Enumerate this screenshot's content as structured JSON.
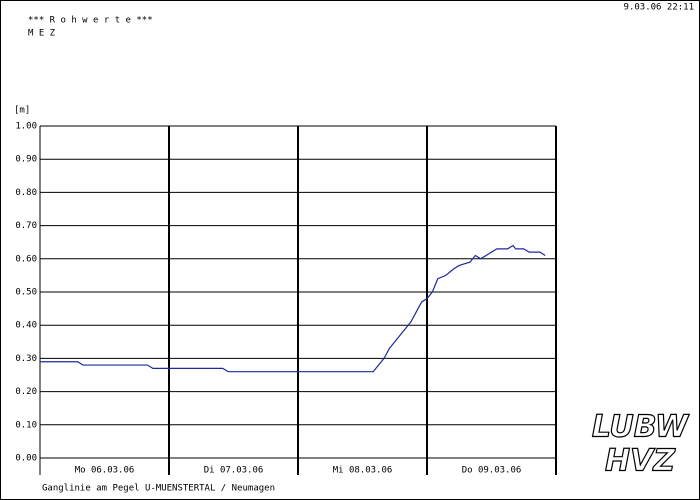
{
  "chart_data": {
    "type": "line",
    "title": "*** R o h w e r t e ***",
    "subtitle": "M E Z",
    "timestamp": "9.03.06 22:11",
    "y_label": "[m]",
    "footer": "Ganglinie am Pegel U-MUENSTERTAL / Neumagen",
    "logos": [
      "LUBW",
      "HVZ"
    ],
    "categories": [
      "Mo 06.03.06",
      "Di 07.03.06",
      "Mi 08.03.06",
      "Do 09.03.06"
    ],
    "xlim": [
      0,
      96
    ],
    "ylim": [
      0,
      1
    ],
    "yticks": [
      {
        "value": 0,
        "label": "0.00"
      },
      {
        "value": 0.1,
        "label": "0.10"
      },
      {
        "value": 0.2,
        "label": "0.20"
      },
      {
        "value": 0.3,
        "label": "0.30"
      },
      {
        "value": 0.4,
        "label": "0.40"
      },
      {
        "value": 0.5,
        "label": "0.50"
      },
      {
        "value": 0.6,
        "label": "0.60"
      },
      {
        "value": 0.7,
        "label": "0.70"
      },
      {
        "value": 0.8,
        "label": "0.80"
      },
      {
        "value": 0.9,
        "label": "0.90"
      },
      {
        "value": 1,
        "label": "1.00"
      }
    ],
    "grid": true,
    "series": [
      {
        "color": "#1f2a9e",
        "x": [
          0,
          7,
          8,
          20,
          21,
          34,
          35,
          62,
          63,
          64,
          65,
          67,
          69,
          70,
          71,
          72,
          73,
          74,
          75.5,
          77,
          78,
          80,
          81,
          82,
          84,
          85,
          87,
          88,
          88.5,
          90,
          91,
          93,
          94
        ],
        "values": [
          0.29,
          0.29,
          0.28,
          0.28,
          0.27,
          0.27,
          0.26,
          0.26,
          0.28,
          0.3,
          0.33,
          0.37,
          0.41,
          0.44,
          0.47,
          0.48,
          0.5,
          0.54,
          0.55,
          0.57,
          0.58,
          0.59,
          0.61,
          0.6,
          0.62,
          0.63,
          0.63,
          0.64,
          0.63,
          0.63,
          0.62,
          0.62,
          0.61
        ]
      }
    ]
  }
}
